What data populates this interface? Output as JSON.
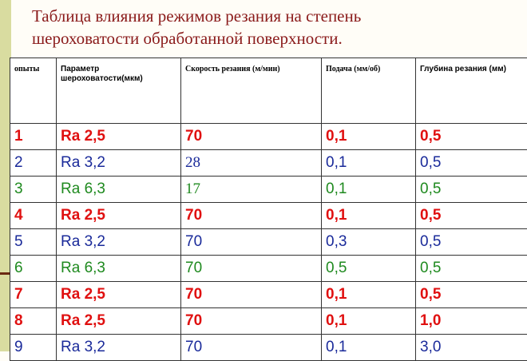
{
  "title": {
    "line1": "Таблица влияния режимов резания на  степень",
    "line2": "шероховатости  обработанной  поверхности."
  },
  "table": {
    "headers": [
      "опыты",
      "Параметр шероховатости(мкм)",
      "Скорость резания (м/мин)",
      "Подача (мм/об)",
      "Глубина резания (мм)"
    ],
    "rows": [
      [
        "1",
        "Ra  2,5",
        "70",
        "0,1",
        "0,5"
      ],
      [
        "2",
        "Ra  3,2",
        "28",
        "0,1",
        "0,5"
      ],
      [
        "3",
        "Ra 6,3",
        "17",
        "0,1",
        "0,5"
      ],
      [
        "4",
        "Ra  2,5",
        "70",
        "0,1",
        "0,5"
      ],
      [
        "5",
        "Ra  3,2",
        "70",
        "0,3",
        "0,5"
      ],
      [
        "6",
        "Ra 6,3",
        "70",
        "0,5",
        "0,5"
      ],
      [
        "7",
        "Ra  2,5",
        "70",
        "0,1",
        "0,5"
      ],
      [
        "8",
        "Ra  2,5",
        "70",
        "0,1",
        "1,0"
      ],
      [
        "9",
        "Ra  3,2",
        "70",
        "0,1",
        "3,0"
      ]
    ]
  },
  "colors": {
    "title": "#8a1a1a",
    "row_red": "#e01010",
    "row_blue": "#1a2a9a",
    "row_green": "#1f8a1f",
    "side_band": "#d9dca0"
  }
}
